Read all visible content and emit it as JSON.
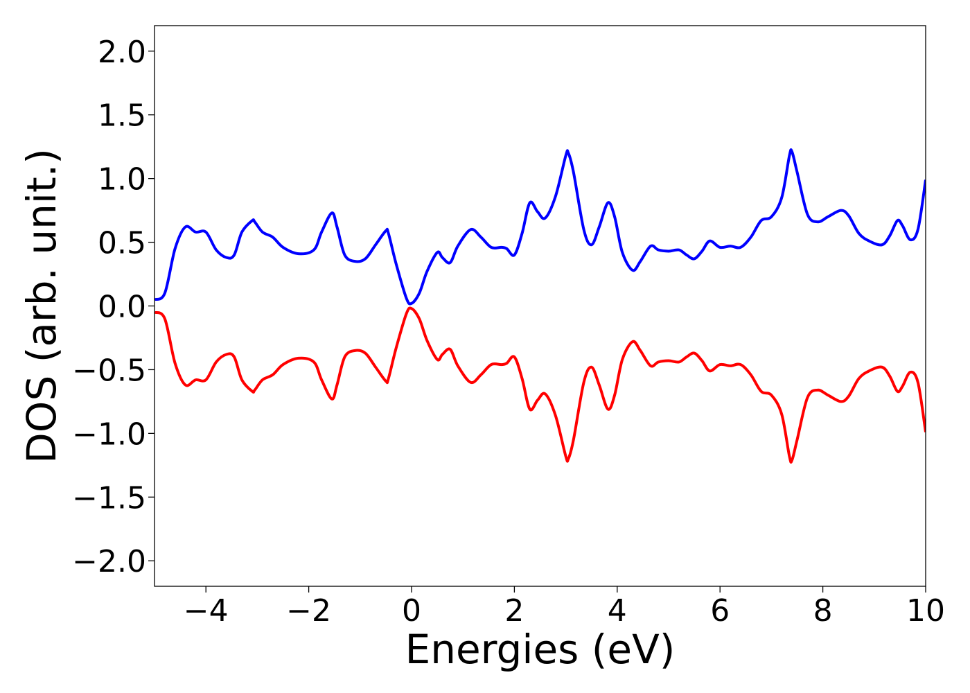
{
  "chart_data": {
    "type": "line",
    "title": "",
    "xlabel": "Energies (eV)",
    "ylabel": "DOS (arb. unit.)",
    "xlim": [
      -5,
      10
    ],
    "ylim": [
      -2.2,
      2.2
    ],
    "grid": false,
    "legend": "none",
    "x_ticks": [
      -4,
      -2,
      0,
      2,
      4,
      6,
      8,
      10
    ],
    "x_tick_labels": [
      "−4",
      "−2",
      "0",
      "2",
      "4",
      "6",
      "8",
      "10"
    ],
    "y_ticks": [
      2.0,
      1.5,
      1.0,
      0.5,
      0.0,
      -0.5,
      -1.0,
      -1.5,
      -2.0
    ],
    "y_tick_labels": [
      "2.0",
      "1.5",
      "1.0",
      "0.5",
      "0.0",
      "−0.5",
      "−1.0",
      "−1.5",
      "−2.0"
    ],
    "series": [
      {
        "color": "#0000ff",
        "x": [
          -5.0,
          -4.8,
          -4.6,
          -4.4,
          -4.2,
          -4.0,
          -3.8,
          -3.6,
          -3.45,
          -3.3,
          -3.1,
          -3.05,
          -2.9,
          -2.7,
          -2.5,
          -2.2,
          -1.9,
          -1.75,
          -1.55,
          -1.45,
          -1.3,
          -1.1,
          -0.9,
          -0.7,
          -0.5,
          -0.45,
          -0.3,
          -0.1,
          0.0,
          0.15,
          0.3,
          0.5,
          0.6,
          0.75,
          0.9,
          1.15,
          1.35,
          1.55,
          1.75,
          1.85,
          2.0,
          2.15,
          2.3,
          2.45,
          2.6,
          2.8,
          3.0,
          3.05,
          3.15,
          3.35,
          3.5,
          3.65,
          3.82,
          3.95,
          4.1,
          4.3,
          4.45,
          4.65,
          4.8,
          5.0,
          5.2,
          5.35,
          5.5,
          5.65,
          5.8,
          6.0,
          6.2,
          6.4,
          6.6,
          6.8,
          7.0,
          7.2,
          7.35,
          7.4,
          7.5,
          7.7,
          7.9,
          8.1,
          8.35,
          8.5,
          8.7,
          8.9,
          9.15,
          9.3,
          9.45,
          9.55,
          9.7,
          9.85,
          10.0
        ],
        "y": [
          0.05,
          0.1,
          0.45,
          0.62,
          0.58,
          0.58,
          0.44,
          0.38,
          0.4,
          0.58,
          0.67,
          0.66,
          0.58,
          0.54,
          0.46,
          0.41,
          0.44,
          0.58,
          0.73,
          0.62,
          0.4,
          0.35,
          0.37,
          0.48,
          0.59,
          0.57,
          0.33,
          0.06,
          0.02,
          0.1,
          0.27,
          0.42,
          0.38,
          0.34,
          0.47,
          0.6,
          0.54,
          0.46,
          0.46,
          0.45,
          0.4,
          0.57,
          0.81,
          0.74,
          0.69,
          0.86,
          1.18,
          1.2,
          1.05,
          0.6,
          0.48,
          0.62,
          0.81,
          0.7,
          0.42,
          0.28,
          0.35,
          0.47,
          0.44,
          0.43,
          0.44,
          0.4,
          0.37,
          0.43,
          0.51,
          0.46,
          0.47,
          0.46,
          0.54,
          0.67,
          0.7,
          0.85,
          1.18,
          1.21,
          1.05,
          0.72,
          0.66,
          0.7,
          0.75,
          0.71,
          0.57,
          0.51,
          0.48,
          0.55,
          0.67,
          0.63,
          0.52,
          0.6,
          0.99
        ]
      },
      {
        "color": "#ff0000",
        "x": [
          -5.0,
          -4.8,
          -4.6,
          -4.4,
          -4.2,
          -4.0,
          -3.8,
          -3.6,
          -3.45,
          -3.3,
          -3.1,
          -3.05,
          -2.9,
          -2.7,
          -2.5,
          -2.2,
          -1.9,
          -1.75,
          -1.55,
          -1.45,
          -1.3,
          -1.1,
          -0.9,
          -0.7,
          -0.5,
          -0.45,
          -0.3,
          -0.1,
          0.0,
          0.15,
          0.3,
          0.5,
          0.6,
          0.75,
          0.9,
          1.15,
          1.35,
          1.55,
          1.75,
          1.85,
          2.0,
          2.15,
          2.3,
          2.45,
          2.6,
          2.8,
          3.0,
          3.05,
          3.15,
          3.35,
          3.5,
          3.65,
          3.82,
          3.95,
          4.1,
          4.3,
          4.45,
          4.65,
          4.8,
          5.0,
          5.2,
          5.35,
          5.5,
          5.65,
          5.8,
          6.0,
          6.2,
          6.4,
          6.6,
          6.8,
          7.0,
          7.2,
          7.35,
          7.4,
          7.5,
          7.7,
          7.9,
          8.1,
          8.35,
          8.5,
          8.7,
          8.9,
          9.15,
          9.3,
          9.45,
          9.55,
          9.7,
          9.85,
          10.0
        ],
        "y": [
          -0.05,
          -0.1,
          -0.45,
          -0.62,
          -0.58,
          -0.58,
          -0.44,
          -0.38,
          -0.4,
          -0.58,
          -0.67,
          -0.66,
          -0.58,
          -0.54,
          -0.46,
          -0.41,
          -0.44,
          -0.58,
          -0.73,
          -0.62,
          -0.4,
          -0.35,
          -0.37,
          -0.48,
          -0.59,
          -0.57,
          -0.33,
          -0.06,
          -0.02,
          -0.1,
          -0.27,
          -0.42,
          -0.38,
          -0.34,
          -0.47,
          -0.6,
          -0.54,
          -0.46,
          -0.46,
          -0.45,
          -0.4,
          -0.57,
          -0.81,
          -0.74,
          -0.69,
          -0.86,
          -1.18,
          -1.2,
          -1.05,
          -0.6,
          -0.48,
          -0.62,
          -0.81,
          -0.7,
          -0.42,
          -0.28,
          -0.35,
          -0.47,
          -0.44,
          -0.43,
          -0.44,
          -0.4,
          -0.37,
          -0.43,
          -0.51,
          -0.46,
          -0.47,
          -0.46,
          -0.54,
          -0.67,
          -0.7,
          -0.85,
          -1.18,
          -1.21,
          -1.05,
          -0.72,
          -0.66,
          -0.7,
          -0.75,
          -0.71,
          -0.57,
          -0.51,
          -0.48,
          -0.55,
          -0.67,
          -0.63,
          -0.52,
          -0.6,
          -0.99
        ]
      }
    ]
  }
}
